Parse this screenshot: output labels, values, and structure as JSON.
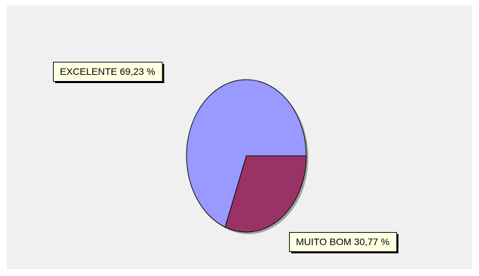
{
  "chart_data": {
    "type": "pie",
    "categories": [
      "EXCELENTE",
      "MUITO BOM"
    ],
    "values": [
      69.23,
      30.77
    ],
    "value_labels": [
      "69,23 %",
      "30,77 %"
    ],
    "colors": [
      "#9999ff",
      "#993366"
    ]
  }
}
